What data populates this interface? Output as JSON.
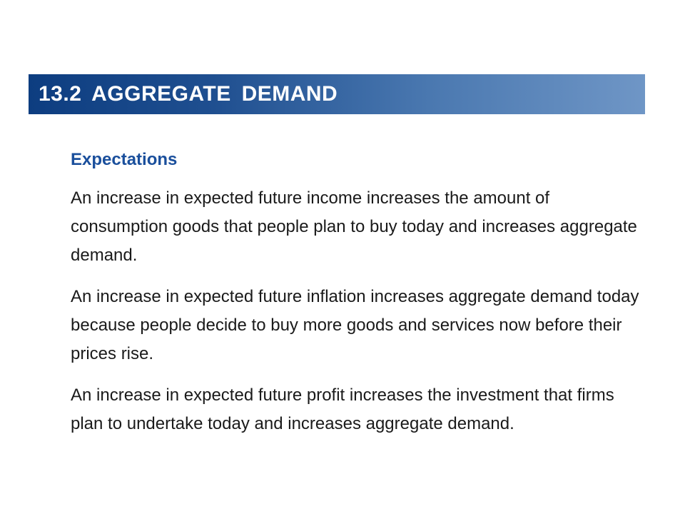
{
  "slide": {
    "title": "13.2  AGGREGATE  DEMAND",
    "title_bar_colors": [
      "#0d3d80",
      "#6f96c6"
    ],
    "subheading": "Expectations",
    "subheading_color": "#1a4f9c",
    "paragraphs": [
      "An increase in expected future income increases the amount of consumption goods that people plan to buy today and increases aggregate demand.",
      "An increase in expected future inflation increases aggregate demand today because people decide to buy more goods and services now before their prices rise.",
      "An increase in expected future profit increases the investment that firms plan to undertake today and increases aggregate demand."
    ]
  }
}
